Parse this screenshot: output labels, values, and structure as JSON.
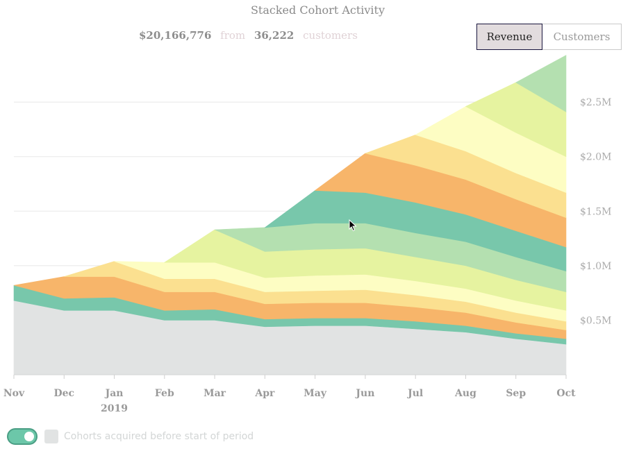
{
  "chart": {
    "title": "Stacked Cohort Activity",
    "summary": {
      "total": "$20,166,776",
      "from": "from",
      "count": "36,222",
      "unit": "customers"
    },
    "toggles": [
      {
        "label": "Revenue",
        "active": true
      },
      {
        "label": "Customers",
        "active": false
      }
    ]
  },
  "footer": {
    "legend_label": "Cohorts acquired before start of period",
    "legend_color": "#e1e3e3",
    "switch_on": true,
    "switch_color": "#6cc7a9"
  },
  "chart_data": {
    "type": "area",
    "stacked": true,
    "categories": [
      "Nov",
      "Dec",
      "Jan",
      "Feb",
      "Mar",
      "Apr",
      "May",
      "Jun",
      "Jul",
      "Aug",
      "Sep",
      "Oct"
    ],
    "x_sublabels": {
      "Jan": "2019"
    },
    "ylim": [
      0,
      2800000
    ],
    "yticks": [
      {
        "value": 500000,
        "label": "$0.5M"
      },
      {
        "value": 1000000,
        "label": "$1.0M"
      },
      {
        "value": 1500000,
        "label": "$1.5M"
      },
      {
        "value": 2000000,
        "label": "$2.0M"
      },
      {
        "value": 2500000,
        "label": "$2.5M"
      }
    ],
    "y_axis_position": "right",
    "grid": true,
    "series": [
      {
        "name": "Cohorts acquired before start of period",
        "color": "#e1e3e3",
        "start": 0,
        "values": [
          680000,
          590000,
          590000,
          500000,
          500000,
          440000,
          450000,
          450000,
          420000,
          390000,
          330000,
          280000
        ]
      },
      {
        "color": "#78c7ab",
        "start": 0,
        "values": [
          140000,
          110000,
          120000,
          90000,
          100000,
          70000,
          70000,
          70000,
          70000,
          60000,
          50000,
          50000
        ]
      },
      {
        "color": "#f7b56a",
        "start": 1,
        "values": [
          0,
          200000,
          190000,
          170000,
          160000,
          140000,
          140000,
          140000,
          130000,
          120000,
          100000,
          80000
        ]
      },
      {
        "color": "#fbe090",
        "start": 2,
        "values": [
          0,
          0,
          140000,
          120000,
          120000,
          110000,
          110000,
          120000,
          110000,
          100000,
          90000,
          80000
        ]
      },
      {
        "color": "#fdfdc3",
        "start": 3,
        "values": [
          0,
          0,
          0,
          150000,
          150000,
          130000,
          140000,
          140000,
          130000,
          120000,
          110000,
          100000
        ]
      },
      {
        "color": "#e6f3a0",
        "start": 4,
        "values": [
          0,
          0,
          0,
          0,
          300000,
          240000,
          240000,
          240000,
          220000,
          210000,
          190000,
          170000
        ]
      },
      {
        "color": "#b4e0b0",
        "start": 5,
        "values": [
          0,
          0,
          0,
          0,
          0,
          220000,
          240000,
          230000,
          220000,
          220000,
          210000,
          190000
        ]
      },
      {
        "color": "#78c7ab",
        "start": 6,
        "values": [
          0,
          0,
          0,
          0,
          0,
          0,
          300000,
          280000,
          280000,
          250000,
          240000,
          220000
        ]
      },
      {
        "color": "#f7b56a",
        "start": 7,
        "values": [
          0,
          0,
          0,
          0,
          0,
          0,
          0,
          360000,
          340000,
          320000,
          290000,
          270000
        ]
      },
      {
        "color": "#fbe090",
        "start": 8,
        "values": [
          0,
          0,
          0,
          0,
          0,
          0,
          0,
          0,
          280000,
          260000,
          240000,
          230000
        ]
      },
      {
        "color": "#fdfdc3",
        "start": 9,
        "values": [
          0,
          0,
          0,
          0,
          0,
          0,
          0,
          0,
          0,
          410000,
          370000,
          330000
        ]
      },
      {
        "color": "#e6f3a0",
        "start": 10,
        "values": [
          0,
          0,
          0,
          0,
          0,
          0,
          0,
          0,
          0,
          0,
          460000,
          410000
        ]
      },
      {
        "color": "#b4e0b0",
        "start": 11,
        "values": [
          0,
          0,
          0,
          0,
          0,
          0,
          0,
          0,
          0,
          0,
          0,
          520000
        ]
      }
    ]
  }
}
